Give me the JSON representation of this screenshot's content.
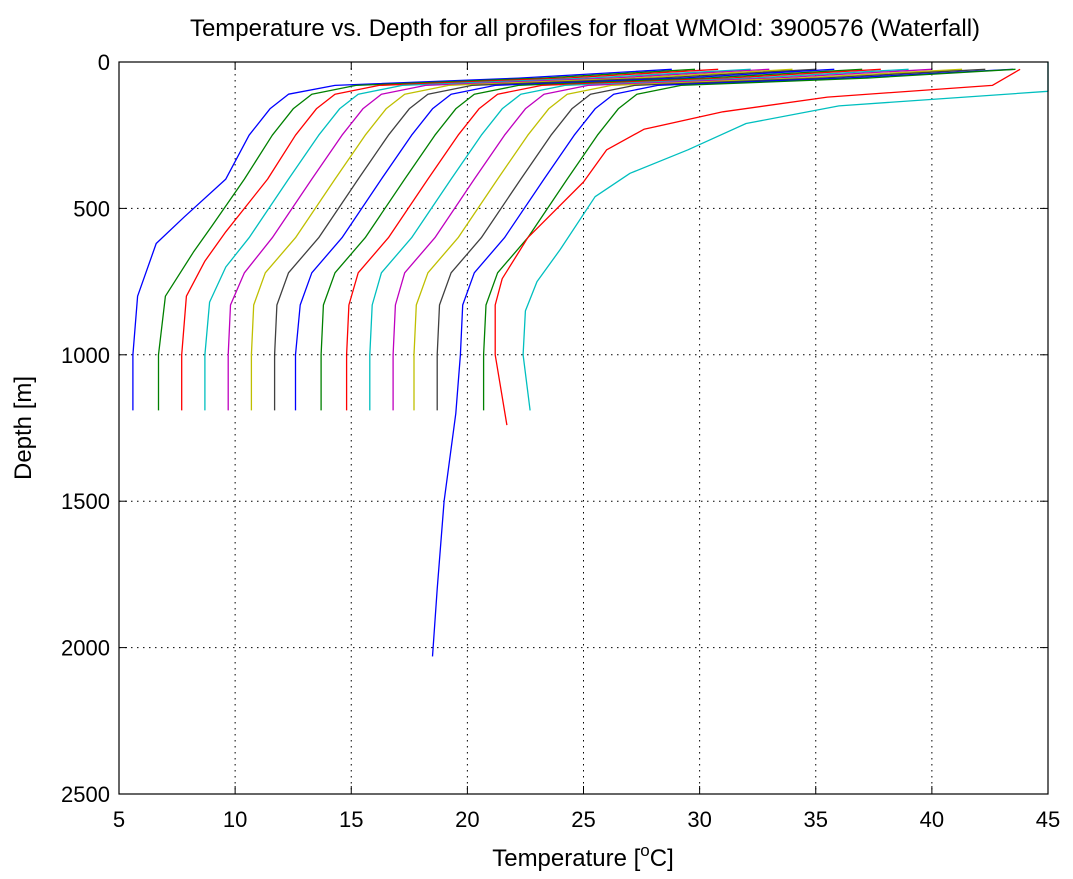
{
  "chart_data": {
    "type": "line",
    "title": "Temperature vs. Depth for all profiles for float WMOId: 3900576 (Waterfall)",
    "xlabel": "Temperature [",
    "xlabel_super": "o",
    "xlabel_tail": "C]",
    "ylabel": "Depth [m]",
    "xlim": [
      5,
      45
    ],
    "ylim": [
      0,
      2500
    ],
    "y_reversed": true,
    "grid": true,
    "x_ticks": [
      5,
      10,
      15,
      20,
      25,
      30,
      35,
      40,
      45
    ],
    "y_ticks": [
      0,
      500,
      1000,
      1500,
      2000,
      2500
    ],
    "series": [
      {
        "color": "#0000ff",
        "x": [
          28.8,
          22.2,
          14.3,
          12.3,
          11.5,
          10.6,
          9.6,
          7.8,
          6.6,
          5.8,
          5.6,
          5.6
        ],
        "y": [
          25,
          55,
          80,
          110,
          160,
          250,
          400,
          530,
          620,
          800,
          1000,
          1190
        ]
      },
      {
        "color": "#008000",
        "x": [
          29.8,
          23.2,
          15.2,
          13.3,
          12.5,
          11.6,
          10.4,
          9.0,
          8.2,
          7.0,
          6.7,
          6.7
        ],
        "y": [
          25,
          55,
          80,
          110,
          160,
          250,
          400,
          560,
          650,
          800,
          1000,
          1190
        ]
      },
      {
        "color": "#ff0000",
        "x": [
          30.8,
          24.2,
          16.2,
          14.3,
          13.5,
          12.6,
          11.4,
          9.6,
          8.7,
          7.9,
          7.7,
          7.7
        ],
        "y": [
          25,
          55,
          80,
          110,
          160,
          250,
          400,
          580,
          680,
          800,
          1000,
          1190
        ]
      },
      {
        "color": "#00bfbf",
        "x": [
          32.2,
          25.2,
          17.2,
          15.3,
          14.5,
          13.6,
          12.3,
          10.6,
          9.6,
          8.9,
          8.7,
          8.7
        ],
        "y": [
          25,
          55,
          80,
          110,
          160,
          250,
          400,
          600,
          700,
          820,
          1000,
          1190
        ]
      },
      {
        "color": "#bf00bf",
        "x": [
          33.0,
          26.2,
          18.2,
          16.3,
          15.5,
          14.6,
          13.3,
          11.6,
          10.4,
          9.8,
          9.7,
          9.7
        ],
        "y": [
          25,
          55,
          80,
          110,
          160,
          250,
          400,
          600,
          720,
          830,
          1000,
          1190
        ]
      },
      {
        "color": "#bfbf00",
        "x": [
          34.0,
          27.2,
          19.2,
          17.3,
          16.5,
          15.6,
          14.3,
          12.6,
          11.3,
          10.8,
          10.7,
          10.7
        ],
        "y": [
          25,
          55,
          80,
          110,
          160,
          250,
          400,
          600,
          720,
          830,
          1000,
          1190
        ]
      },
      {
        "color": "#404040",
        "x": [
          35.0,
          28.2,
          20.2,
          18.3,
          17.5,
          16.6,
          15.3,
          13.6,
          12.3,
          11.8,
          11.7,
          11.7
        ],
        "y": [
          25,
          55,
          80,
          110,
          160,
          250,
          400,
          600,
          720,
          830,
          1000,
          1190
        ]
      },
      {
        "color": "#0000ff",
        "x": [
          35.8,
          29.2,
          21.2,
          19.3,
          18.5,
          17.6,
          16.3,
          14.6,
          13.3,
          12.8,
          12.6,
          12.6
        ],
        "y": [
          25,
          55,
          80,
          110,
          160,
          250,
          400,
          600,
          720,
          830,
          1000,
          1190
        ]
      },
      {
        "color": "#008000",
        "x": [
          37.0,
          30.2,
          22.2,
          20.3,
          19.5,
          18.6,
          17.3,
          15.6,
          14.3,
          13.8,
          13.7,
          13.7
        ],
        "y": [
          25,
          55,
          80,
          110,
          160,
          250,
          400,
          600,
          720,
          830,
          1000,
          1190
        ]
      },
      {
        "color": "#ff0000",
        "x": [
          37.8,
          31.2,
          23.2,
          21.3,
          20.5,
          19.6,
          18.3,
          16.6,
          15.3,
          14.9,
          14.8,
          14.8
        ],
        "y": [
          25,
          55,
          80,
          110,
          160,
          250,
          400,
          600,
          720,
          830,
          1000,
          1190
        ]
      },
      {
        "color": "#00bfbf",
        "x": [
          39.0,
          32.2,
          24.2,
          22.3,
          21.5,
          20.6,
          19.3,
          17.6,
          16.3,
          15.9,
          15.8,
          15.8
        ],
        "y": [
          25,
          55,
          80,
          110,
          160,
          250,
          400,
          600,
          720,
          830,
          1000,
          1190
        ]
      },
      {
        "color": "#bf00bf",
        "x": [
          40.0,
          33.2,
          25.2,
          23.3,
          22.5,
          21.6,
          20.3,
          18.6,
          17.3,
          16.9,
          16.8,
          16.8
        ],
        "y": [
          25,
          55,
          80,
          110,
          160,
          250,
          400,
          600,
          720,
          830,
          1000,
          1190
        ]
      },
      {
        "color": "#bfbf00",
        "x": [
          41.3,
          34.2,
          26.2,
          24.3,
          23.5,
          22.6,
          21.3,
          19.6,
          18.3,
          17.8,
          17.7,
          17.7
        ],
        "y": [
          25,
          55,
          80,
          110,
          160,
          250,
          400,
          600,
          720,
          830,
          1000,
          1190
        ]
      },
      {
        "color": "#404040",
        "x": [
          42.3,
          35.2,
          27.2,
          25.3,
          24.5,
          23.6,
          22.3,
          20.6,
          19.3,
          18.8,
          18.7,
          18.7
        ],
        "y": [
          25,
          55,
          80,
          110,
          160,
          250,
          400,
          600,
          720,
          830,
          1000,
          1190
        ]
      },
      {
        "color": "#0000ff",
        "x": [
          43.5,
          36.2,
          28.2,
          26.3,
          25.5,
          24.6,
          23.3,
          21.6,
          20.3,
          19.8,
          19.7,
          19.5,
          19.0,
          18.7,
          18.5
        ],
        "y": [
          25,
          55,
          80,
          110,
          160,
          250,
          400,
          600,
          720,
          830,
          1000,
          1200,
          1500,
          1800,
          2030
        ]
      },
      {
        "color": "#008000",
        "x": [
          43.6,
          37.2,
          29.2,
          27.3,
          26.5,
          25.6,
          24.3,
          22.6,
          21.3,
          20.8,
          20.7,
          20.7
        ],
        "y": [
          25,
          55,
          80,
          110,
          160,
          250,
          400,
          600,
          720,
          830,
          1000,
          1190
        ]
      },
      {
        "color": "#ff0000",
        "x": [
          43.8,
          42.6,
          35.5,
          31.0,
          27.6,
          26.0,
          25.0,
          22.6,
          21.5,
          21.2,
          21.2,
          21.7
        ],
        "y": [
          25,
          80,
          120,
          170,
          230,
          300,
          410,
          600,
          740,
          830,
          1000,
          1240
        ]
      },
      {
        "color": "#00bfbf",
        "x": [
          45.0,
          45.0,
          36.0,
          32.0,
          29.5,
          27.0,
          25.5,
          24.0,
          23.0,
          22.5,
          22.4,
          22.7
        ],
        "y": [
          0,
          100,
          150,
          210,
          300,
          380,
          460,
          640,
          750,
          850,
          1000,
          1190
        ]
      }
    ]
  }
}
